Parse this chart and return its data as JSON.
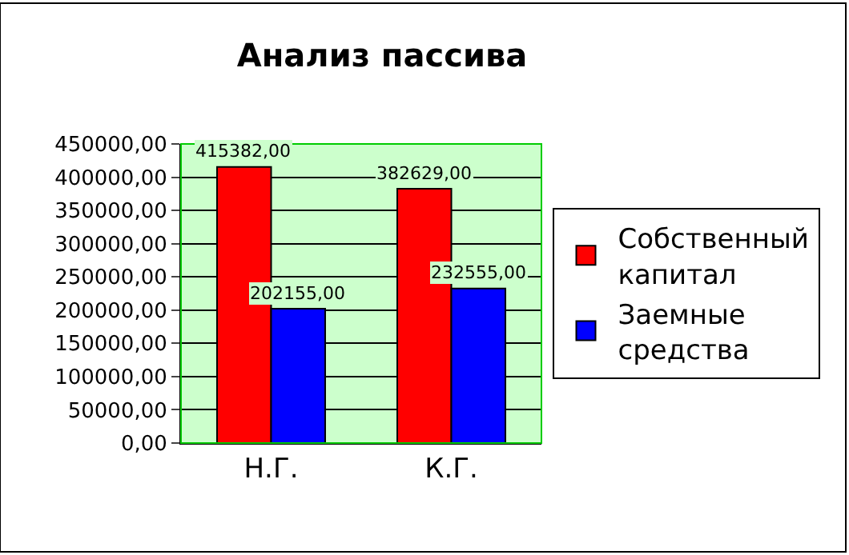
{
  "chart_data": {
    "type": "bar",
    "title": "Анализ пассива",
    "categories": [
      "Н.Г.",
      "К.Г."
    ],
    "series": [
      {
        "name": "Собственный капитал",
        "color": "#ff0000",
        "values": [
          415382,
          382629
        ],
        "value_labels": [
          "415382,00",
          "382629,00"
        ]
      },
      {
        "name": "Заемные средства",
        "color": "#0000ff",
        "values": [
          202155,
          232555
        ],
        "value_labels": [
          "202155,00",
          "232555,00"
        ]
      }
    ],
    "ylim": [
      0,
      450000
    ],
    "yticks": [
      {
        "value": 0,
        "label": "0,00"
      },
      {
        "value": 50000,
        "label": "50000,00"
      },
      {
        "value": 100000,
        "label": "100000,00"
      },
      {
        "value": 150000,
        "label": "150000,00"
      },
      {
        "value": 200000,
        "label": "200000,00"
      },
      {
        "value": 250000,
        "label": "250000,00"
      },
      {
        "value": 300000,
        "label": "300000,00"
      },
      {
        "value": 350000,
        "label": "350000,00"
      },
      {
        "value": 400000,
        "label": "400000,00"
      },
      {
        "value": 450000,
        "label": "450000,00"
      }
    ],
    "grid": "y",
    "legend": "right"
  }
}
